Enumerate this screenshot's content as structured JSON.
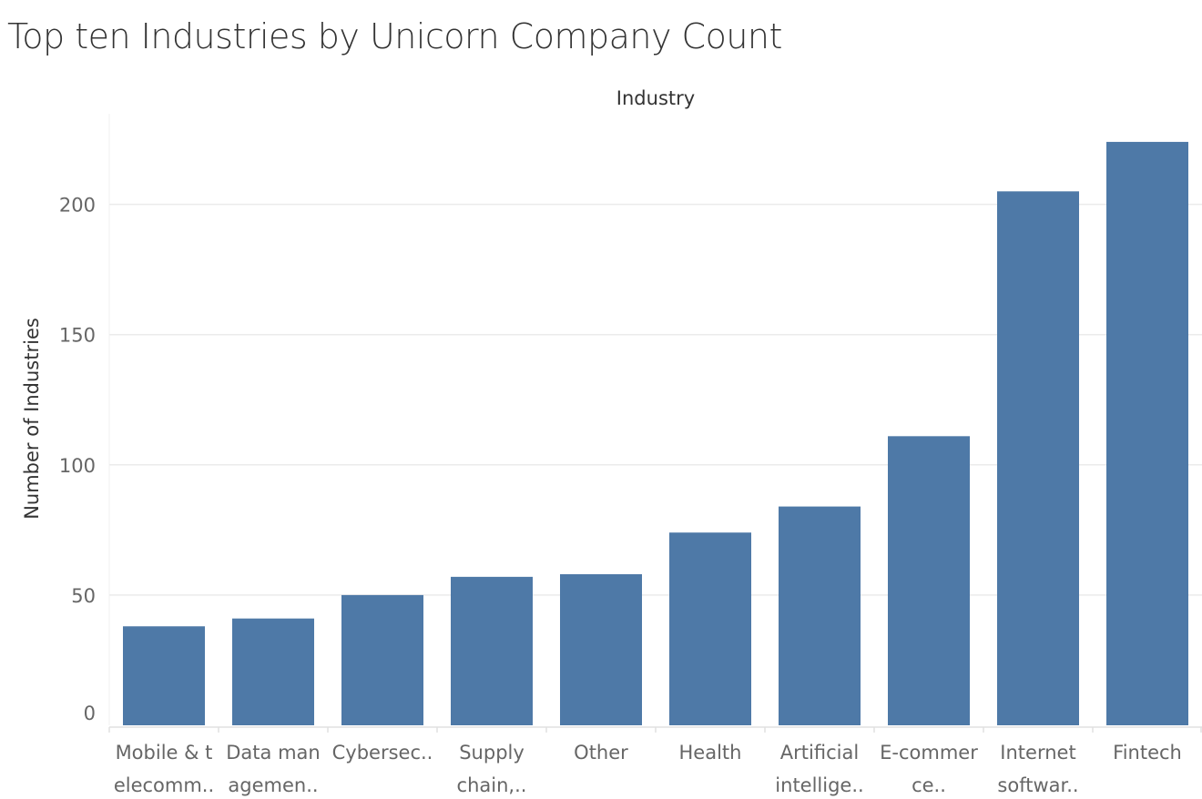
{
  "title": "Top ten Industries by Unicorn Company Count",
  "chart_data": {
    "type": "bar",
    "title": "Top ten Industries by Unicorn Company Count",
    "xlabel": "Industry",
    "ylabel": "Number of Industries",
    "categories": [
      [
        "Mobile & t",
        "elecomm.."
      ],
      [
        "Data man",
        "agemen.."
      ],
      [
        "Cybersec.."
      ],
      [
        "Supply",
        "chain,.."
      ],
      [
        "Other"
      ],
      [
        "Health"
      ],
      [
        "Artificial",
        "intellige.."
      ],
      [
        "E-commer",
        "ce.."
      ],
      [
        "Internet",
        "softwar.."
      ],
      [
        "Fintech"
      ]
    ],
    "values": [
      38,
      41,
      50,
      57,
      58,
      74,
      84,
      111,
      205,
      224
    ],
    "yticks": [
      0,
      50,
      100,
      150,
      200
    ],
    "ylim": [
      0,
      235
    ],
    "grid": true,
    "legend": "none",
    "bar_color": "#4e79a7",
    "grid_color": "#ebebeb",
    "axis_color": "#e0e0e0"
  }
}
